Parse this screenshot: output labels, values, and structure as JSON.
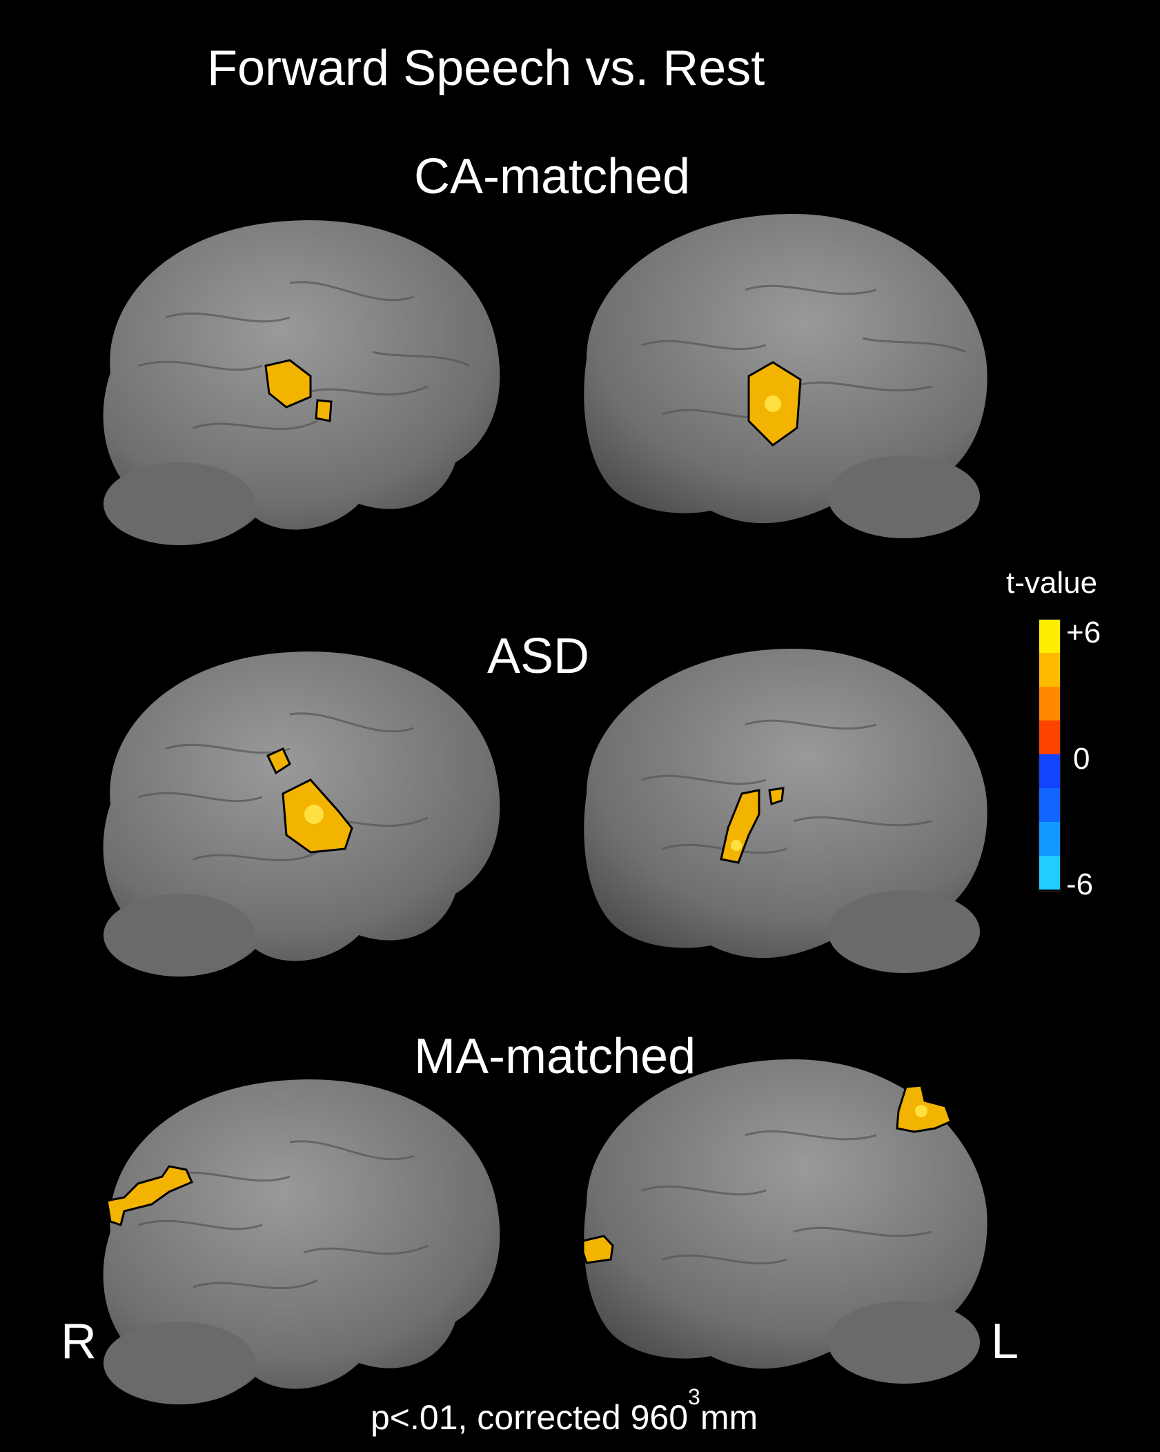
{
  "title": "Forward Speech vs. Rest",
  "groups": [
    {
      "label": "CA-matched"
    },
    {
      "label": "ASD"
    },
    {
      "label": "MA-matched"
    }
  ],
  "hemispheres": {
    "right": "R",
    "left": "L"
  },
  "legend": {
    "title": "t-value",
    "max_label": "+6",
    "zero_label": "0",
    "min_label": "-6",
    "colors": [
      "#ffee00",
      "#ffbb00",
      "#ff8800",
      "#ff4400",
      "#1144ff",
      "#1166ff",
      "#1199ff",
      "#22ccff"
    ]
  },
  "footnote": {
    "prefix": "p<.01, corrected 960",
    "superscript": "3",
    "suffix": "mm"
  },
  "colors": {
    "background": "#000000",
    "brain": "#7f7f7f",
    "activation": "#f2b400",
    "activation_peak": "#ffe040"
  }
}
